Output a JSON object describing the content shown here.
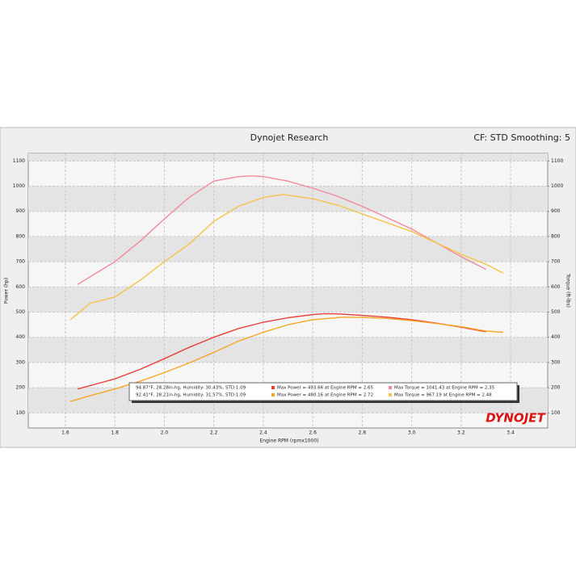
{
  "chart_data": {
    "type": "line",
    "title": "Dynojet Research",
    "subtitle": "CF: STD Smoothing: 5",
    "x_label": "Engine RPM (rpmx1000)",
    "y_label": "Power (hp)",
    "y2_label": "Torque (ft-lbs)",
    "brand": "DYNOJET",
    "xlim": [
      1.45,
      3.55
    ],
    "xticks": [
      1.6,
      1.8,
      {
        "value": 2,
        "label": "2.0"
      },
      2.2,
      2.4,
      2.6,
      2.8,
      {
        "value": 3,
        "label": "3.0"
      },
      3.2,
      3.4
    ],
    "ylim": [
      40,
      1130
    ],
    "yticks": [
      100,
      200,
      300,
      400,
      500,
      600,
      700,
      800,
      900,
      1000,
      1100
    ],
    "y2lim": [
      40,
      1130
    ],
    "y2ticks": [
      100,
      200,
      300,
      400,
      500,
      600,
      700,
      800,
      900,
      1000,
      1100
    ],
    "grid": true,
    "legend_rows": [
      "94.87°F, 28.28in-hg, Humidity: 30.43%, STD:1.09",
      "92.41°F, 28.21in-hg, Humidity: 31.57%, STD:1.09"
    ],
    "series": [
      {
        "name": "Max Power = 493.66 at Engine RPM = 2.65",
        "color": "#e8403a",
        "x": [
          1.65,
          1.8,
          1.9,
          2.0,
          2.1,
          2.2,
          2.3,
          2.4,
          2.5,
          2.6,
          2.65,
          2.7,
          2.8,
          2.9,
          3.0,
          3.1,
          3.2,
          3.3
        ],
        "values": [
          195,
          235,
          272,
          315,
          360,
          400,
          435,
          460,
          478,
          490,
          494,
          493,
          487,
          480,
          470,
          456,
          440,
          422
        ]
      },
      {
        "name": "Max Torque = 1041.43 at Engine RPM = 2.35",
        "color": "#f0899a",
        "x": [
          1.65,
          1.7,
          1.8,
          1.9,
          2.0,
          2.1,
          2.2,
          2.3,
          2.35,
          2.4,
          2.5,
          2.6,
          2.7,
          2.8,
          2.9,
          3.0,
          3.1,
          3.2,
          3.3
        ],
        "values": [
          610,
          640,
          700,
          780,
          870,
          955,
          1020,
          1038,
          1041,
          1038,
          1020,
          992,
          960,
          920,
          875,
          830,
          775,
          720,
          670
        ]
      },
      {
        "name": "Max Power = 480.16 at Engine RPM = 2.72",
        "color": "#f5a623",
        "x": [
          1.62,
          1.7,
          1.8,
          1.9,
          2.0,
          2.1,
          2.2,
          2.3,
          2.4,
          2.5,
          2.6,
          2.72,
          2.8,
          2.9,
          3.0,
          3.1,
          3.2,
          3.3,
          3.37
        ],
        "values": [
          145,
          168,
          195,
          225,
          260,
          298,
          340,
          385,
          420,
          450,
          470,
          480,
          479,
          475,
          466,
          455,
          442,
          425,
          420
        ]
      },
      {
        "name": "Max Torque = 967.19 at Engine RPM = 2.48",
        "color": "#f8c24a",
        "x": [
          1.62,
          1.7,
          1.8,
          1.9,
          2.0,
          2.1,
          2.2,
          2.3,
          2.4,
          2.48,
          2.6,
          2.7,
          2.8,
          2.9,
          3.0,
          3.1,
          3.2,
          3.3,
          3.37
        ],
        "values": [
          470,
          535,
          560,
          625,
          700,
          770,
          860,
          920,
          955,
          967,
          950,
          925,
          890,
          855,
          820,
          775,
          730,
          690,
          655
        ]
      }
    ]
  }
}
